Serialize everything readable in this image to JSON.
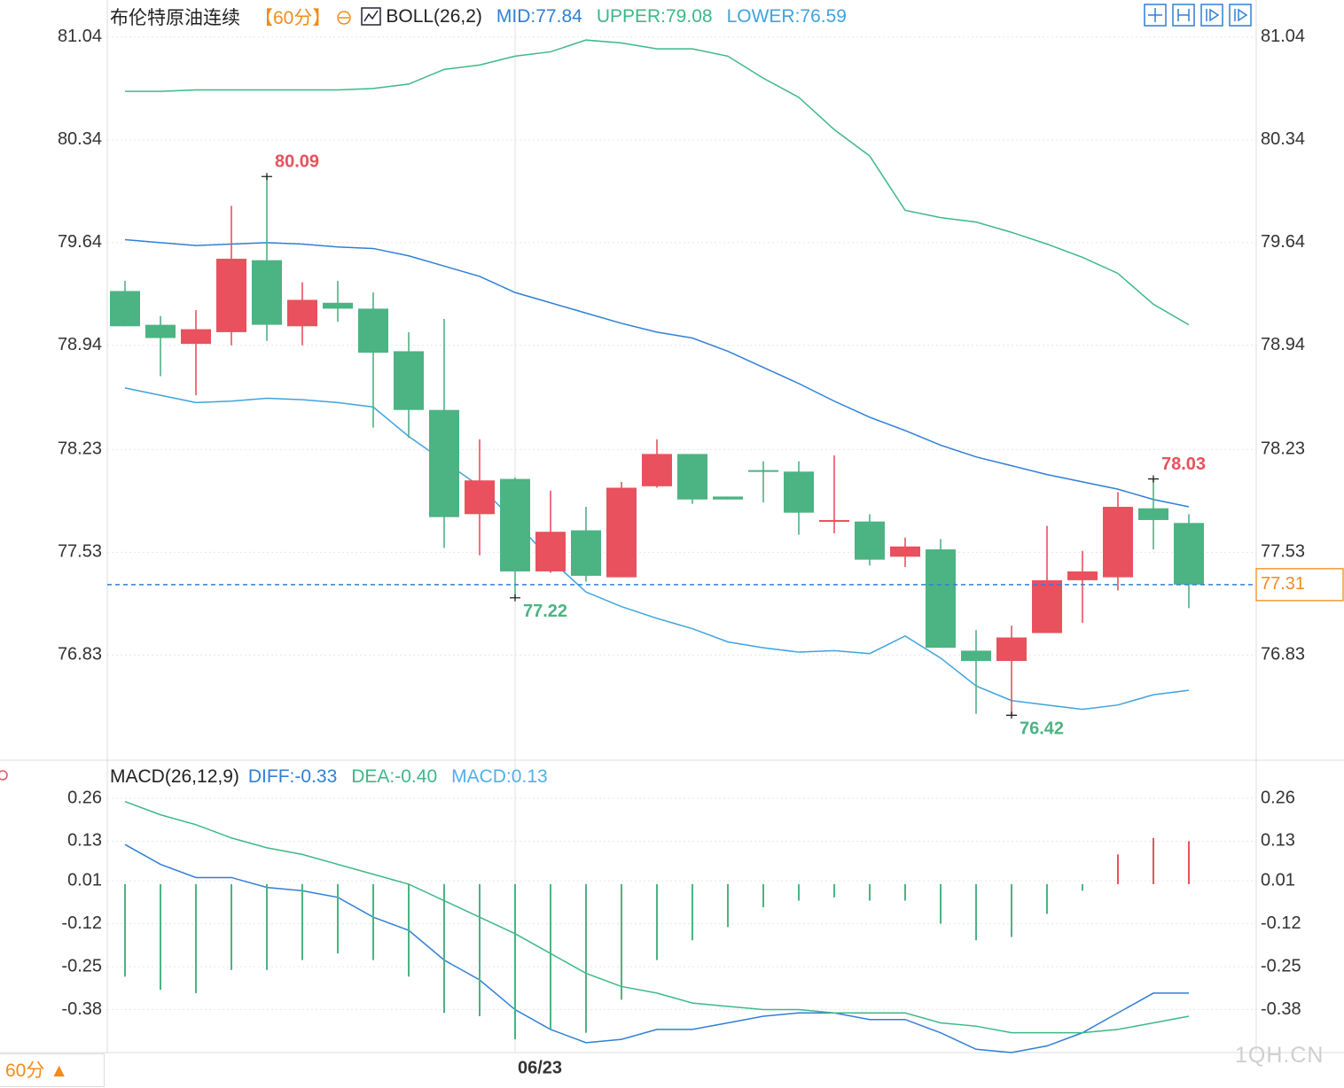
{
  "chart_data": [
    {
      "type": "candlestick",
      "title": "布伦特原油连续",
      "subtitle": "【60分】",
      "indicator": "BOLL(26,2)",
      "categories": [
        null,
        null,
        null,
        null,
        null,
        null,
        null,
        null,
        null,
        null,
        null,
        "06/23",
        null,
        null,
        null,
        null,
        null,
        null,
        null,
        null,
        null,
        null,
        null,
        null,
        null,
        null,
        null,
        null,
        null,
        null,
        null
      ],
      "candles": {
        "open": [
          79.31,
          79.08,
          78.95,
          79.03,
          79.52,
          79.07,
          79.23,
          79.19,
          78.9,
          78.5,
          77.79,
          78.03,
          77.4,
          77.68,
          77.36,
          77.98,
          78.2,
          77.91,
          78.09,
          78.08,
          77.74,
          77.74,
          77.5,
          77.55,
          76.86,
          76.79,
          76.98,
          77.34,
          77.36,
          77.83,
          77.73
        ],
        "high": [
          79.38,
          79.14,
          79.18,
          79.89,
          80.09,
          79.37,
          79.38,
          79.3,
          79.03,
          79.12,
          78.3,
          78.04,
          77.95,
          77.84,
          78.01,
          78.3,
          78.2,
          77.91,
          78.15,
          78.15,
          78.19,
          77.79,
          77.63,
          77.62,
          77.0,
          77.03,
          77.71,
          77.54,
          77.94,
          78.03,
          77.79
        ],
        "low": [
          79.07,
          78.73,
          78.6,
          78.94,
          78.97,
          78.94,
          79.1,
          78.38,
          78.31,
          77.56,
          77.51,
          77.22,
          77.39,
          77.33,
          77.36,
          77.97,
          77.86,
          77.89,
          77.87,
          77.65,
          77.66,
          77.44,
          77.43,
          76.88,
          76.43,
          76.42,
          76.98,
          77.05,
          77.27,
          77.55,
          77.15
        ],
        "close": [
          79.07,
          78.99,
          79.05,
          79.53,
          79.08,
          79.25,
          79.19,
          78.89,
          78.5,
          77.77,
          78.02,
          77.4,
          77.67,
          77.37,
          77.97,
          78.2,
          77.89,
          77.89,
          78.08,
          77.8,
          77.75,
          77.48,
          77.57,
          76.88,
          76.79,
          76.95,
          77.34,
          77.4,
          77.84,
          77.75,
          77.31
        ]
      },
      "up_color": "#e8515d",
      "down_color": "#4cb383",
      "last_price_color": "#2f7fd6",
      "price_box_color": "#f08c1a",
      "series": [
        {
          "name": "MID:77.84",
          "color": "#2f7fd6",
          "values": [
            79.66,
            79.64,
            79.62,
            79.63,
            79.64,
            79.63,
            79.61,
            79.6,
            79.55,
            79.48,
            79.41,
            79.3,
            79.23,
            79.16,
            79.09,
            79.03,
            78.99,
            78.9,
            78.79,
            78.68,
            78.56,
            78.45,
            78.36,
            78.26,
            78.18,
            78.12,
            78.06,
            78.01,
            77.96,
            77.89,
            77.84
          ]
        },
        {
          "name": "UPPER:79.08",
          "color": "#3db887",
          "values": [
            80.67,
            80.67,
            80.68,
            80.68,
            80.68,
            80.68,
            80.68,
            80.69,
            80.72,
            80.82,
            80.85,
            80.91,
            80.94,
            81.02,
            81.0,
            80.96,
            80.96,
            80.91,
            80.76,
            80.63,
            80.41,
            80.23,
            79.86,
            79.81,
            79.78,
            79.71,
            79.63,
            79.54,
            79.43,
            79.22,
            79.08
          ]
        },
        {
          "name": "LOWER:76.59",
          "color": "#3fa3de",
          "values": [
            78.65,
            78.6,
            78.55,
            78.56,
            78.58,
            78.57,
            78.55,
            78.52,
            78.32,
            78.15,
            77.98,
            77.74,
            77.48,
            77.26,
            77.16,
            77.08,
            77.01,
            76.92,
            76.88,
            76.85,
            76.86,
            76.84,
            76.96,
            76.81,
            76.62,
            76.52,
            76.49,
            76.46,
            76.49,
            76.56,
            76.59
          ]
        }
      ],
      "ylim": [
        76.12,
        81.16
      ],
      "yticks": [
        81.04,
        80.34,
        79.64,
        78.94,
        78.23,
        77.53,
        76.83
      ],
      "grid": true
    },
    {
      "type": "macd",
      "title": "MACD(26,12,9)",
      "series": [
        {
          "name": "DIFF:-0.33",
          "color": "#2f7fd6",
          "style": "line",
          "values": [
            0.12,
            0.06,
            0.02,
            0.02,
            -0.01,
            -0.02,
            -0.04,
            -0.1,
            -0.14,
            -0.23,
            -0.29,
            -0.38,
            -0.44,
            -0.48,
            -0.47,
            -0.44,
            -0.44,
            -0.42,
            -0.4,
            -0.39,
            -0.39,
            -0.41,
            -0.41,
            -0.45,
            -0.5,
            -0.51,
            -0.49,
            -0.45,
            -0.39,
            -0.33,
            -0.33
          ]
        },
        {
          "name": "DEA:-0.40",
          "color": "#3db887",
          "style": "line",
          "values": [
            0.25,
            0.21,
            0.18,
            0.14,
            0.11,
            0.09,
            0.06,
            0.03,
            0.0,
            -0.05,
            -0.1,
            -0.15,
            -0.21,
            -0.27,
            -0.31,
            -0.33,
            -0.36,
            -0.37,
            -0.38,
            -0.38,
            -0.39,
            -0.39,
            -0.39,
            -0.42,
            -0.43,
            -0.45,
            -0.45,
            -0.45,
            -0.44,
            -0.42,
            -0.4
          ]
        },
        {
          "name": "MACD:0.13",
          "color": "#4fb0e8",
          "style": "bar",
          "up_color": "#e8515d",
          "down_color": "#4cb383",
          "values": [
            -0.28,
            -0.32,
            -0.33,
            -0.26,
            -0.26,
            -0.23,
            -0.21,
            -0.23,
            -0.28,
            -0.39,
            -0.4,
            -0.47,
            -0.44,
            -0.45,
            -0.35,
            -0.23,
            -0.17,
            -0.13,
            -0.07,
            -0.05,
            -0.04,
            -0.05,
            -0.05,
            -0.12,
            -0.17,
            -0.16,
            -0.09,
            -0.02,
            0.09,
            0.14,
            0.13
          ]
        }
      ],
      "ylim": [
        -0.51,
        0.37
      ],
      "yticks": [
        0.26,
        0.13,
        0.01,
        -0.12,
        -0.25,
        -0.38
      ],
      "grid": true
    }
  ],
  "ui": {
    "period_button": "60分 ▲",
    "watermark": "1QH.CN"
  }
}
